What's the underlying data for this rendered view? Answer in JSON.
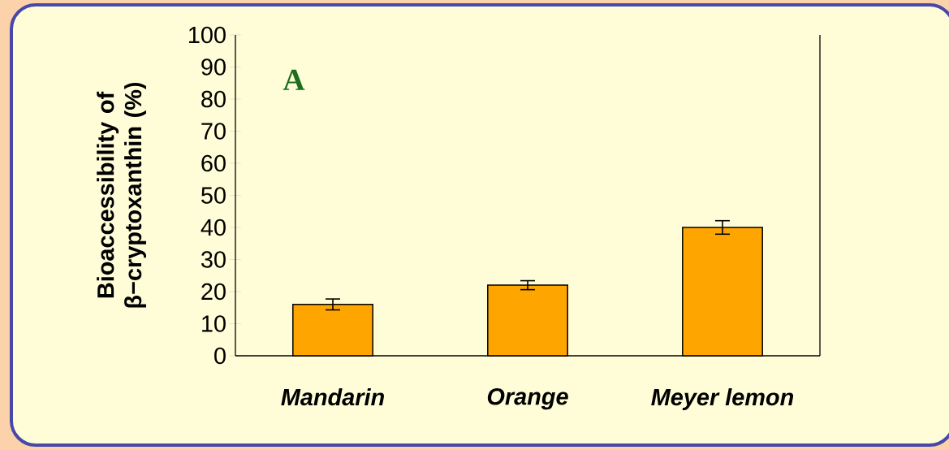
{
  "chart_data": {
    "type": "bar",
    "ylabel": "Bioaccessibility of β−cryptoxanthin (%)",
    "categories": [
      "Mandarin",
      "Orange",
      "Meyer lemon"
    ],
    "values": [
      16,
      22,
      40
    ],
    "errors": [
      1.7,
      1.4,
      2.1
    ],
    "color": "#ffa500",
    "ylim": [
      0,
      100
    ],
    "yticks": [
      0,
      10,
      20,
      30,
      40,
      50,
      60,
      70,
      80,
      90,
      100
    ],
    "annotations": [
      "A"
    ],
    "grid": false
  }
}
